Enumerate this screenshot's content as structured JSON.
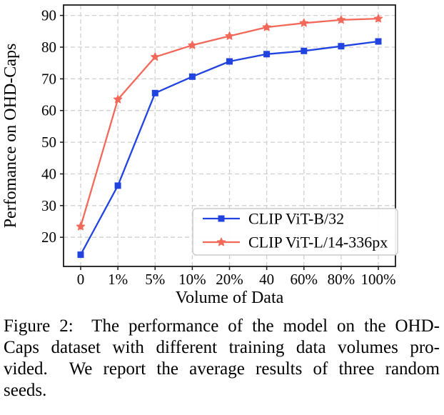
{
  "background": "#ffffff",
  "chart_data": {
    "type": "line",
    "title": "",
    "xlabel": "Volume of Data",
    "ylabel": "Perfomance on OHD-Caps",
    "categories": [
      "0",
      "1%",
      "5%",
      "10%",
      "20%",
      "40",
      "60%",
      "80%",
      "100%"
    ],
    "yticks": [
      20,
      30,
      40,
      50,
      60,
      70,
      80,
      90
    ],
    "ylim": [
      10.8,
      93.3
    ],
    "grid": true,
    "grid_style": "dashed",
    "grid_color": "#cfcfcf",
    "spine_color": "#1a1a1a",
    "legend_position": "lower right",
    "series": [
      {
        "name": "CLIP ViT-B/32",
        "color": "#2143e0",
        "marker": "square",
        "values": [
          14.5,
          36.3,
          65.5,
          70.7,
          75.5,
          77.8,
          78.8,
          80.3,
          81.8
        ]
      },
      {
        "name": "CLIP ViT-L/14-336px",
        "color": "#f2695a",
        "marker": "star",
        "values": [
          23.4,
          63.5,
          76.9,
          80.6,
          83.5,
          86.3,
          87.6,
          88.6,
          89.0
        ]
      }
    ]
  },
  "caption": {
    "lines": [
      "Figure 2:  The performance of the model on the OHD-",
      "Caps dataset with different training data volumes pro-",
      "vided.  We report the average results of three random",
      "seeds."
    ]
  }
}
